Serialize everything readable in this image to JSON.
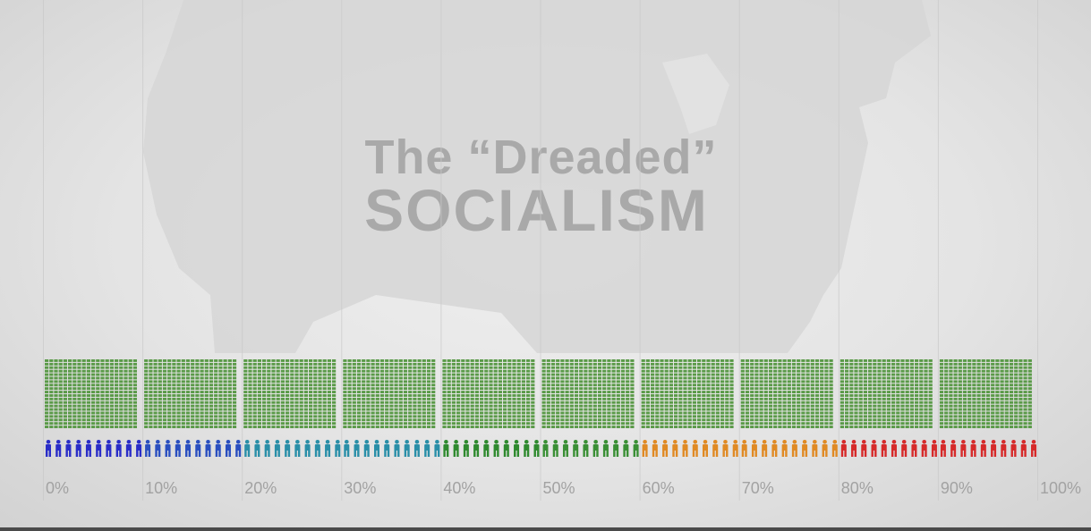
{
  "title": {
    "line1": "The “Dreaded”",
    "line2": "SOCIALISM"
  },
  "chart_data": {
    "type": "bar",
    "description_type": "pictogram distribution",
    "x_ticks": [
      "0%",
      "10%",
      "20%",
      "30%",
      "40%",
      "50%",
      "60%",
      "70%",
      "80%",
      "90%",
      "100%"
    ],
    "xlim": [
      0,
      100
    ],
    "segments": [
      {
        "from": 0,
        "to": 10,
        "share": 1,
        "color": "#2a2dc8"
      },
      {
        "from": 10,
        "to": 20,
        "share": 1,
        "color": "#2a4fc0"
      },
      {
        "from": 20,
        "to": 30,
        "share": 1,
        "color": "#2a8fa8"
      },
      {
        "from": 30,
        "to": 40,
        "share": 1,
        "color": "#2a8fa8"
      },
      {
        "from": 40,
        "to": 50,
        "share": 1,
        "color": "#2f8a2f"
      },
      {
        "from": 50,
        "to": 60,
        "share": 1,
        "color": "#3a8f35"
      },
      {
        "from": 60,
        "to": 70,
        "share": 1,
        "color": "#e08a24"
      },
      {
        "from": 70,
        "to": 80,
        "share": 1,
        "color": "#e08a24"
      },
      {
        "from": 80,
        "to": 90,
        "share": 1,
        "color": "#d62a2a"
      },
      {
        "from": 90,
        "to": 100,
        "share": 1,
        "color": "#d62a2a"
      }
    ],
    "people_per_segment": 10,
    "money_stack_color": "#5a9a48",
    "grid": true
  }
}
